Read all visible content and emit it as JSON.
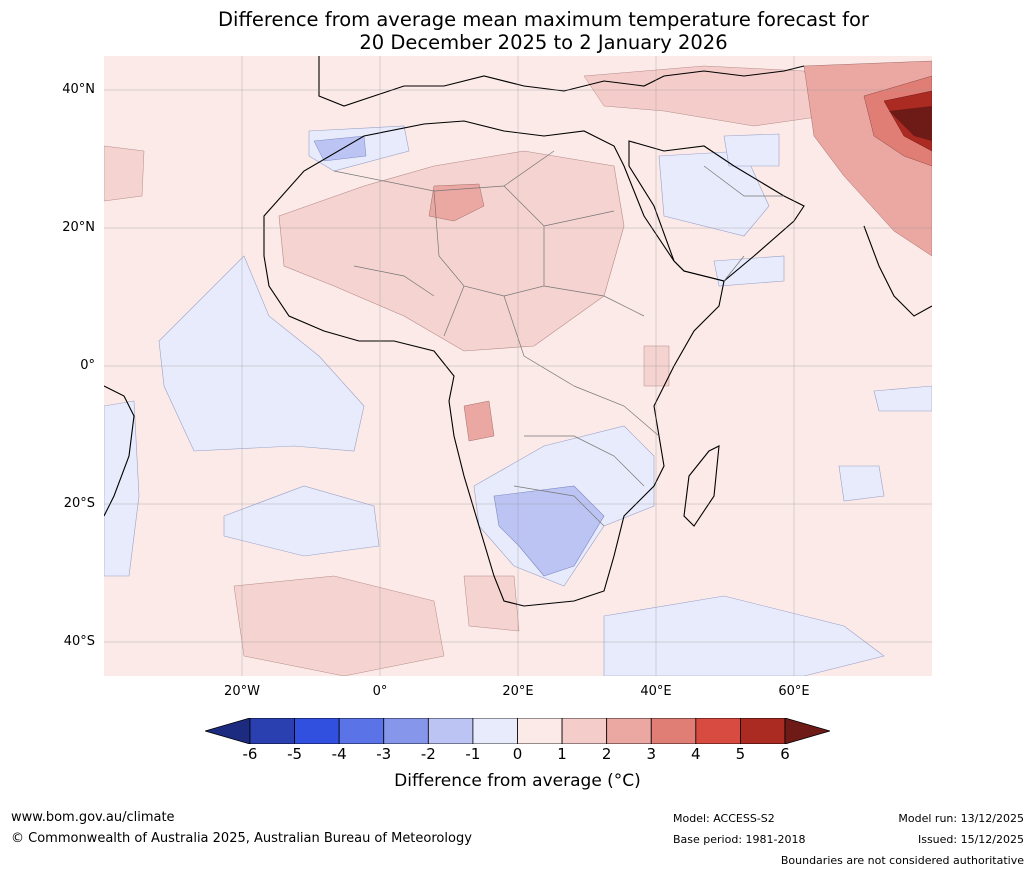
{
  "title": {
    "line1": "Difference from average mean maximum temperature forecast for",
    "line2": "20 December 2025 to 2 January 2026"
  },
  "axes": {
    "lat_labels": [
      "40°N",
      "20°N",
      "0°",
      "20°S",
      "40°S"
    ],
    "lon_labels": [
      "20°W",
      "0°",
      "20°E",
      "40°E",
      "60°E"
    ]
  },
  "colorbar": {
    "ticks": [
      "-6",
      "-5",
      "-4",
      "-3",
      "-2",
      "-1",
      "0",
      "1",
      "2",
      "3",
      "4",
      "5",
      "6"
    ],
    "label": "Difference from average ($^\\circ$C)",
    "label_display": "Difference from average (°C)",
    "colors": [
      "#1c2b80",
      "#2a3fb0",
      "#3150e0",
      "#5a73e6",
      "#8696ea",
      "#bcc4f3",
      "#e8ebfb",
      "#fbeae8",
      "#f4cdca",
      "#eba7a2",
      "#e07d75",
      "#d74b40",
      "#ab2a22",
      "#6e1a17"
    ]
  },
  "footer": {
    "url": "www.bom.gov.au/climate",
    "copyright": "© Commonwealth of Australia 2025, Australian Bureau of Meteorology",
    "model": "Model: ACCESS-S2",
    "base_period": "Base period: 1981-2018",
    "model_run": "Model run: 13/12/2025",
    "issued": "Issued: 15/12/2025",
    "disclaimer": "Boundaries are not considered authoritative"
  },
  "map": {
    "extent_lon": [
      -40,
      80
    ],
    "extent_lat": [
      -45,
      45
    ],
    "background_color": "#fbeae8"
  }
}
